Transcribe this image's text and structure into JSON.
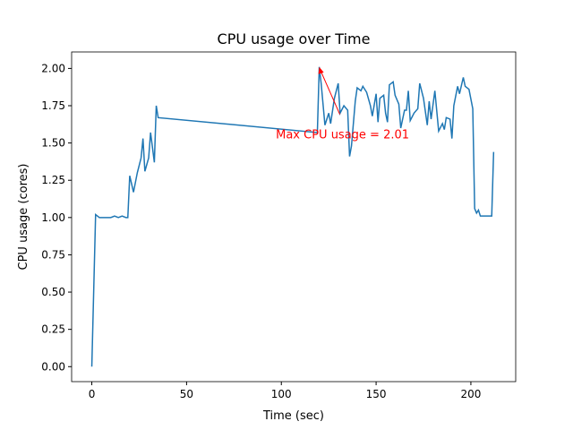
{
  "chart_data": {
    "type": "line",
    "title": "CPU usage over Time",
    "x_label": "Time (sec)",
    "y_label": "CPU usage (cores)",
    "x": [
      0,
      2,
      3,
      4,
      6,
      8,
      10,
      12,
      14,
      16,
      18,
      19,
      20,
      22,
      24,
      26,
      27,
      28,
      30,
      31,
      33,
      34,
      35,
      119,
      120,
      121,
      123,
      125,
      126,
      128,
      130,
      131,
      133,
      135,
      136,
      137,
      139,
      140,
      142,
      143,
      145,
      147,
      148,
      150,
      151,
      152,
      154,
      155,
      156,
      157,
      159,
      160,
      162,
      163,
      165,
      166,
      167,
      168,
      170,
      172,
      173,
      175,
      177,
      178,
      179,
      181,
      183,
      185,
      186,
      187,
      189,
      190,
      191,
      193,
      194,
      196,
      197,
      199,
      201,
      202,
      203,
      204,
      205,
      206,
      207,
      209,
      211,
      212
    ],
    "values": [
      0,
      1.02,
      1.01,
      1.0,
      1.0,
      1.0,
      1.0,
      1.01,
      1.0,
      1.01,
      1.0,
      1.0,
      1.28,
      1.17,
      1.3,
      1.4,
      1.53,
      1.31,
      1.4,
      1.57,
      1.37,
      1.75,
      1.67,
      1.57,
      2.01,
      1.9,
      1.62,
      1.7,
      1.63,
      1.8,
      1.9,
      1.7,
      1.75,
      1.72,
      1.41,
      1.48,
      1.78,
      1.87,
      1.85,
      1.88,
      1.84,
      1.75,
      1.68,
      1.83,
      1.64,
      1.8,
      1.82,
      1.7,
      1.64,
      1.89,
      1.91,
      1.82,
      1.76,
      1.6,
      1.72,
      1.72,
      1.85,
      1.65,
      1.7,
      1.73,
      1.9,
      1.8,
      1.62,
      1.78,
      1.66,
      1.85,
      1.58,
      1.63,
      1.59,
      1.67,
      1.66,
      1.53,
      1.75,
      1.88,
      1.83,
      1.94,
      1.88,
      1.86,
      1.73,
      1.06,
      1.03,
      1.05,
      1.01,
      1.01,
      1.01,
      1.01,
      1.01,
      1.44
    ],
    "color": "#1f77b4",
    "xlim": [
      -10.65,
      223.65
    ],
    "ylim": [
      -0.1005,
      2.1105
    ],
    "xticks": [
      0,
      50,
      100,
      150,
      200
    ],
    "yticks": [
      {
        "value": 0,
        "label": "0.00"
      },
      {
        "value": 0.25,
        "label": "0.25"
      },
      {
        "value": 0.5,
        "label": "0.50"
      },
      {
        "value": 0.75,
        "label": "0.75"
      },
      {
        "value": 1,
        "label": "1.00"
      },
      {
        "value": 1.25,
        "label": "1.25"
      },
      {
        "value": 1.5,
        "label": "1.50"
      },
      {
        "value": 1.75,
        "label": "1.75"
      },
      {
        "value": 2,
        "label": "2.00"
      }
    ],
    "annotation": {
      "text": "Max CPU usage = 2.01",
      "color": "red"
    }
  }
}
